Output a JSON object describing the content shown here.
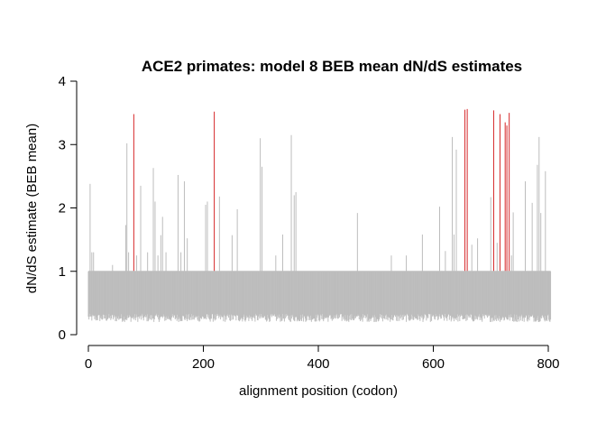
{
  "chart_data": {
    "type": "bar",
    "title": "ACE2 primates: model 8 BEB mean dN/dS estimates",
    "xlabel": "alignment position (codon)",
    "ylabel": "dN/dS estimate (BEB mean)",
    "xlim": [
      0,
      805
    ],
    "ylim": [
      0,
      4
    ],
    "xticks": [
      0,
      200,
      400,
      600,
      800
    ],
    "yticks": [
      0,
      1,
      2,
      3,
      4
    ],
    "grid": false,
    "colors": {
      "default": "#bdbdbd",
      "highlight": "#d62728"
    },
    "baseline_upper": 1.0,
    "baseline_lower_min": 0.2,
    "baseline_lower_max": 0.33,
    "n_positions": 805,
    "peaks": [
      {
        "x": 3,
        "y": 2.38
      },
      {
        "x": 6,
        "y": 1.3
      },
      {
        "x": 9,
        "y": 1.3
      },
      {
        "x": 42,
        "y": 1.1
      },
      {
        "x": 65,
        "y": 1.73
      },
      {
        "x": 67,
        "y": 3.02
      },
      {
        "x": 70,
        "y": 1.3
      },
      {
        "x": 79,
        "y": 3.48,
        "highlight": true
      },
      {
        "x": 84,
        "y": 1.25
      },
      {
        "x": 91,
        "y": 2.35
      },
      {
        "x": 103,
        "y": 1.3
      },
      {
        "x": 113,
        "y": 2.63
      },
      {
        "x": 116,
        "y": 2.1
      },
      {
        "x": 121,
        "y": 1.25
      },
      {
        "x": 126,
        "y": 1.57
      },
      {
        "x": 129,
        "y": 1.86
      },
      {
        "x": 135,
        "y": 1.3
      },
      {
        "x": 156,
        "y": 2.52
      },
      {
        "x": 161,
        "y": 1.3
      },
      {
        "x": 167,
        "y": 2.42
      },
      {
        "x": 172,
        "y": 1.52
      },
      {
        "x": 204,
        "y": 2.05
      },
      {
        "x": 207,
        "y": 2.1
      },
      {
        "x": 219,
        "y": 3.52,
        "highlight": true
      },
      {
        "x": 228,
        "y": 2.18
      },
      {
        "x": 250,
        "y": 1.57
      },
      {
        "x": 259,
        "y": 1.98
      },
      {
        "x": 299,
        "y": 3.1
      },
      {
        "x": 302,
        "y": 2.65
      },
      {
        "x": 326,
        "y": 1.25
      },
      {
        "x": 338,
        "y": 1.58
      },
      {
        "x": 353,
        "y": 3.15
      },
      {
        "x": 358,
        "y": 2.2
      },
      {
        "x": 361,
        "y": 2.25
      },
      {
        "x": 468,
        "y": 1.92
      },
      {
        "x": 527,
        "y": 1.25
      },
      {
        "x": 553,
        "y": 1.25
      },
      {
        "x": 581,
        "y": 1.58
      },
      {
        "x": 611,
        "y": 2.02
      },
      {
        "x": 621,
        "y": 1.32
      },
      {
        "x": 633,
        "y": 3.12
      },
      {
        "x": 636,
        "y": 1.58
      },
      {
        "x": 640,
        "y": 2.92
      },
      {
        "x": 655,
        "y": 3.55,
        "highlight": true
      },
      {
        "x": 659,
        "y": 3.56,
        "highlight": true
      },
      {
        "x": 667,
        "y": 1.42
      },
      {
        "x": 677,
        "y": 1.52
      },
      {
        "x": 700,
        "y": 2.17
      },
      {
        "x": 705,
        "y": 3.54,
        "highlight": true
      },
      {
        "x": 711,
        "y": 1.45
      },
      {
        "x": 716,
        "y": 3.48,
        "highlight": true
      },
      {
        "x": 725,
        "y": 3.35,
        "highlight": true
      },
      {
        "x": 728,
        "y": 3.3,
        "highlight": true
      },
      {
        "x": 732,
        "y": 3.5,
        "highlight": true
      },
      {
        "x": 736,
        "y": 1.25
      },
      {
        "x": 739,
        "y": 1.93
      },
      {
        "x": 760,
        "y": 2.42
      },
      {
        "x": 772,
        "y": 2.08
      },
      {
        "x": 781,
        "y": 2.68
      },
      {
        "x": 784,
        "y": 3.12
      },
      {
        "x": 787,
        "y": 1.92
      },
      {
        "x": 795,
        "y": 2.58
      }
    ]
  }
}
